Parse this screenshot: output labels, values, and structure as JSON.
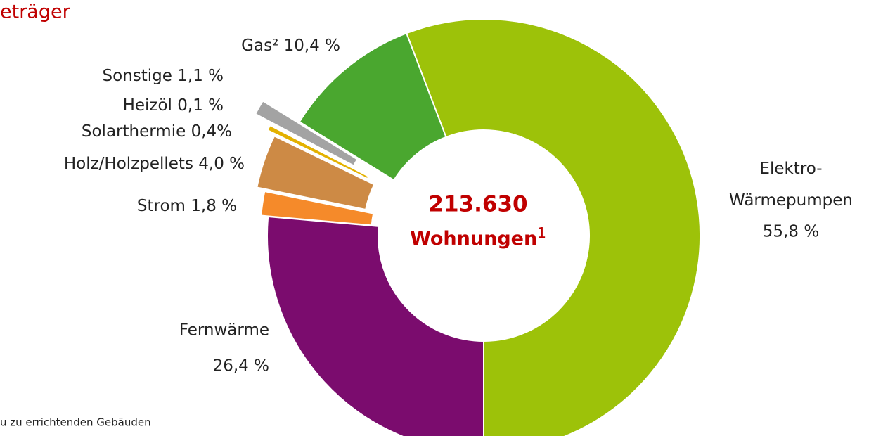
{
  "title": "eträger",
  "footnote": "u zu errichtenden Gebäuden",
  "chart_data": {
    "type": "donut",
    "center_label": {
      "value": "213.630",
      "unit": "Wohnungen",
      "note": "1"
    },
    "categories": [
      "Fernwärme",
      "Strom",
      "Holz/Holzpellets",
      "Solarthermie",
      "Heizöl",
      "Sonstige",
      "Gas²",
      "Elektro-Wärmepumpen"
    ],
    "values": [
      26.4,
      1.8,
      4.0,
      0.4,
      0.1,
      1.1,
      10.4,
      55.8
    ],
    "value_labels": [
      "26,4 %",
      "1,8 %",
      "4,0 %",
      "0,4%",
      "0,1 %",
      "1,1 %",
      "10,4 %",
      "55,8 %"
    ],
    "colors": [
      "#7b0c6e",
      "#f58a2a",
      "#cd8a45",
      "#e3b100",
      "#f3efc8",
      "#a3a3a3",
      "#4aa72f",
      "#9dc209"
    ]
  }
}
